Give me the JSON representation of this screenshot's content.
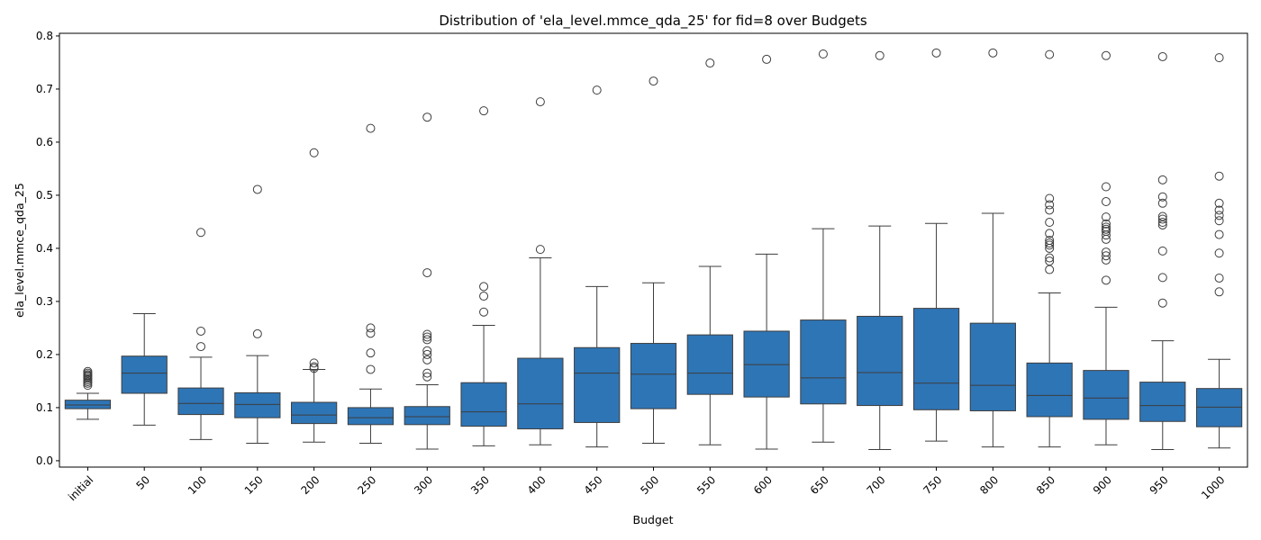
{
  "chart_data": {
    "type": "box",
    "title": "Distribution of 'ela_level.mmce_qda_25' for fid=8 over Budgets",
    "xlabel": "Budget",
    "ylabel": "ela_level.mmce_qda_25",
    "ylim": [
      -0.012,
      0.805
    ],
    "yticks": [
      "0.0",
      "0.1",
      "0.2",
      "0.3",
      "0.4",
      "0.5",
      "0.6",
      "0.7",
      "0.8"
    ],
    "grid": false,
    "box_color": "#2e75b6",
    "line_color": "#3d3d3d",
    "categories": [
      "initial",
      "50",
      "100",
      "150",
      "200",
      "250",
      "300",
      "350",
      "400",
      "450",
      "500",
      "550",
      "600",
      "650",
      "700",
      "750",
      "800",
      "850",
      "900",
      "950",
      "1000"
    ],
    "boxes": [
      {
        "whislo": 0.078,
        "q1": 0.098,
        "med": 0.105,
        "q3": 0.114,
        "whishi": 0.127,
        "fliers": [
          0.142,
          0.146,
          0.149,
          0.152,
          0.155,
          0.158,
          0.16,
          0.162,
          0.165,
          0.168
        ]
      },
      {
        "whislo": 0.067,
        "q1": 0.127,
        "med": 0.165,
        "q3": 0.197,
        "whishi": 0.277,
        "fliers": []
      },
      {
        "whislo": 0.04,
        "q1": 0.087,
        "med": 0.108,
        "q3": 0.137,
        "whishi": 0.195,
        "fliers": [
          0.215,
          0.244,
          0.43
        ]
      },
      {
        "whislo": 0.033,
        "q1": 0.081,
        "med": 0.106,
        "q3": 0.128,
        "whishi": 0.198,
        "fliers": [
          0.239,
          0.511
        ]
      },
      {
        "whislo": 0.035,
        "q1": 0.07,
        "med": 0.086,
        "q3": 0.11,
        "whishi": 0.172,
        "fliers": [
          0.174,
          0.177,
          0.184,
          0.58
        ]
      },
      {
        "whislo": 0.033,
        "q1": 0.068,
        "med": 0.081,
        "q3": 0.1,
        "whishi": 0.135,
        "fliers": [
          0.172,
          0.203,
          0.24,
          0.25,
          0.626
        ]
      },
      {
        "whislo": 0.022,
        "q1": 0.068,
        "med": 0.083,
        "q3": 0.102,
        "whishi": 0.143,
        "fliers": [
          0.158,
          0.165,
          0.19,
          0.2,
          0.207,
          0.228,
          0.233,
          0.238,
          0.354,
          0.647
        ]
      },
      {
        "whislo": 0.028,
        "q1": 0.065,
        "med": 0.092,
        "q3": 0.147,
        "whishi": 0.255,
        "fliers": [
          0.28,
          0.31,
          0.328,
          0.659
        ]
      },
      {
        "whislo": 0.03,
        "q1": 0.06,
        "med": 0.107,
        "q3": 0.193,
        "whishi": 0.382,
        "fliers": [
          0.398,
          0.676
        ]
      },
      {
        "whislo": 0.026,
        "q1": 0.072,
        "med": 0.165,
        "q3": 0.213,
        "whishi": 0.328,
        "fliers": [
          0.698
        ]
      },
      {
        "whislo": 0.033,
        "q1": 0.098,
        "med": 0.163,
        "q3": 0.221,
        "whishi": 0.335,
        "fliers": [
          0.715
        ]
      },
      {
        "whislo": 0.03,
        "q1": 0.125,
        "med": 0.165,
        "q3": 0.237,
        "whishi": 0.366,
        "fliers": [
          0.749
        ]
      },
      {
        "whislo": 0.022,
        "q1": 0.12,
        "med": 0.181,
        "q3": 0.244,
        "whishi": 0.389,
        "fliers": [
          0.756
        ]
      },
      {
        "whislo": 0.035,
        "q1": 0.107,
        "med": 0.156,
        "q3": 0.265,
        "whishi": 0.437,
        "fliers": [
          0.766
        ]
      },
      {
        "whislo": 0.021,
        "q1": 0.104,
        "med": 0.166,
        "q3": 0.272,
        "whishi": 0.442,
        "fliers": [
          0.763
        ]
      },
      {
        "whislo": 0.037,
        "q1": 0.096,
        "med": 0.146,
        "q3": 0.287,
        "whishi": 0.447,
        "fliers": [
          0.768
        ]
      },
      {
        "whislo": 0.026,
        "q1": 0.094,
        "med": 0.142,
        "q3": 0.259,
        "whishi": 0.466,
        "fliers": [
          0.768
        ]
      },
      {
        "whislo": 0.026,
        "q1": 0.083,
        "med": 0.123,
        "q3": 0.184,
        "whishi": 0.316,
        "fliers": [
          0.36,
          0.376,
          0.382,
          0.4,
          0.406,
          0.41,
          0.415,
          0.428,
          0.449,
          0.472,
          0.482,
          0.494,
          0.765
        ]
      },
      {
        "whislo": 0.03,
        "q1": 0.078,
        "med": 0.118,
        "q3": 0.17,
        "whishi": 0.289,
        "fliers": [
          0.34,
          0.378,
          0.386,
          0.393,
          0.417,
          0.425,
          0.432,
          0.436,
          0.44,
          0.446,
          0.459,
          0.488,
          0.516,
          0.763
        ]
      },
      {
        "whislo": 0.021,
        "q1": 0.074,
        "med": 0.104,
        "q3": 0.148,
        "whishi": 0.226,
        "fliers": [
          0.297,
          0.345,
          0.395,
          0.444,
          0.449,
          0.455,
          0.46,
          0.485,
          0.497,
          0.529,
          0.761
        ]
      },
      {
        "whislo": 0.024,
        "q1": 0.064,
        "med": 0.101,
        "q3": 0.136,
        "whishi": 0.191,
        "fliers": [
          0.318,
          0.344,
          0.391,
          0.426,
          0.452,
          0.462,
          0.472,
          0.485,
          0.536,
          0.759
        ]
      }
    ]
  }
}
